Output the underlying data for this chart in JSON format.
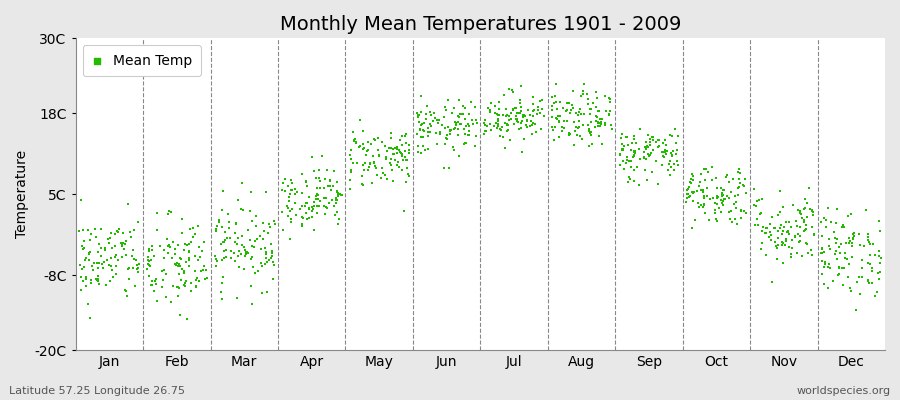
{
  "title": "Monthly Mean Temperatures 1901 - 2009",
  "ylabel": "Temperature",
  "bottom_left_text": "Latitude 57.25 Longitude 26.75",
  "bottom_right_text": "worldspecies.org",
  "legend_label": "Mean Temp",
  "marker_color": "#22BB00",
  "plot_bg_color": "#FFFFFF",
  "fig_bg_color": "#E8E8E8",
  "ylim": [
    -20,
    30
  ],
  "yticks": [
    -20,
    -8,
    5,
    18,
    30
  ],
  "ytick_labels": [
    "-20C",
    "-8C",
    "5C",
    "18C",
    "30C"
  ],
  "months": [
    "Jan",
    "Feb",
    "Mar",
    "Apr",
    "May",
    "Jun",
    "Jul",
    "Aug",
    "Sep",
    "Oct",
    "Nov",
    "Dec"
  ],
  "monthly_mean": [
    -5.5,
    -6.5,
    -3.0,
    4.5,
    11.0,
    15.5,
    17.5,
    17.0,
    11.5,
    5.0,
    -0.5,
    -4.5
  ],
  "monthly_std": [
    3.5,
    4.0,
    3.5,
    2.5,
    2.5,
    2.2,
    2.0,
    2.2,
    2.2,
    2.5,
    3.0,
    3.5
  ],
  "n_years": 109,
  "seed": 42,
  "title_fontsize": 14,
  "axis_fontsize": 10,
  "small_fontsize": 8
}
